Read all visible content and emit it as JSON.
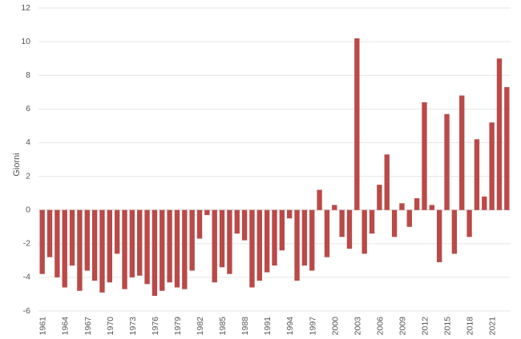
{
  "chart_data": {
    "type": "bar",
    "title": "",
    "xlabel": "",
    "ylabel": "Giorni",
    "ylim": [
      -6,
      12
    ],
    "yticks": [
      -6,
      -4,
      -2,
      0,
      2,
      4,
      6,
      8,
      10,
      12
    ],
    "grid": "horizontal",
    "legend": "none",
    "bar_color": "#b94a48",
    "categories": [
      "1961",
      "1962",
      "1963",
      "1964",
      "1965",
      "1966",
      "1967",
      "1968",
      "1969",
      "1970",
      "1971",
      "1972",
      "1973",
      "1974",
      "1975",
      "1976",
      "1977",
      "1978",
      "1979",
      "1980",
      "1981",
      "1982",
      "1983",
      "1984",
      "1985",
      "1986",
      "1987",
      "1988",
      "1989",
      "1990",
      "1991",
      "1992",
      "1993",
      "1994",
      "1995",
      "1996",
      "1997",
      "1998",
      "1999",
      "2000",
      "2001",
      "2002",
      "2003",
      "2004",
      "2005",
      "2006",
      "2007",
      "2008",
      "2009",
      "2010",
      "2011",
      "2012",
      "2013",
      "2014",
      "2015",
      "2016",
      "2017",
      "2018",
      "2019",
      "2020",
      "2021",
      "2022",
      "2023"
    ],
    "x_tick_labels": [
      "1961",
      "1964",
      "1967",
      "1970",
      "1973",
      "1976",
      "1979",
      "1982",
      "1985",
      "1988",
      "1991",
      "1994",
      "1997",
      "2000",
      "2003",
      "2006",
      "2009",
      "2012",
      "2015",
      "2018",
      "2021"
    ],
    "values": [
      -3.8,
      -2.8,
      -4.0,
      -4.6,
      -3.3,
      -4.8,
      -3.6,
      -4.2,
      -4.9,
      -4.3,
      -2.6,
      -4.7,
      -4.0,
      -3.9,
      -4.4,
      -5.1,
      -4.8,
      -4.3,
      -4.6,
      -4.7,
      -3.6,
      -1.7,
      -0.3,
      -4.3,
      -3.4,
      -3.8,
      -1.4,
      -1.8,
      -4.6,
      -4.2,
      -3.7,
      -3.3,
      -2.4,
      -0.5,
      -4.2,
      -3.3,
      -3.6,
      1.2,
      -2.8,
      0.3,
      -1.6,
      -2.3,
      10.2,
      -2.6,
      -1.4,
      1.5,
      3.3,
      -1.6,
      0.4,
      -1.0,
      0.7,
      6.4,
      0.3,
      -3.1,
      5.7,
      -2.6,
      6.8,
      -1.6,
      4.2,
      0.8,
      5.2,
      9.0,
      7.3
    ]
  }
}
